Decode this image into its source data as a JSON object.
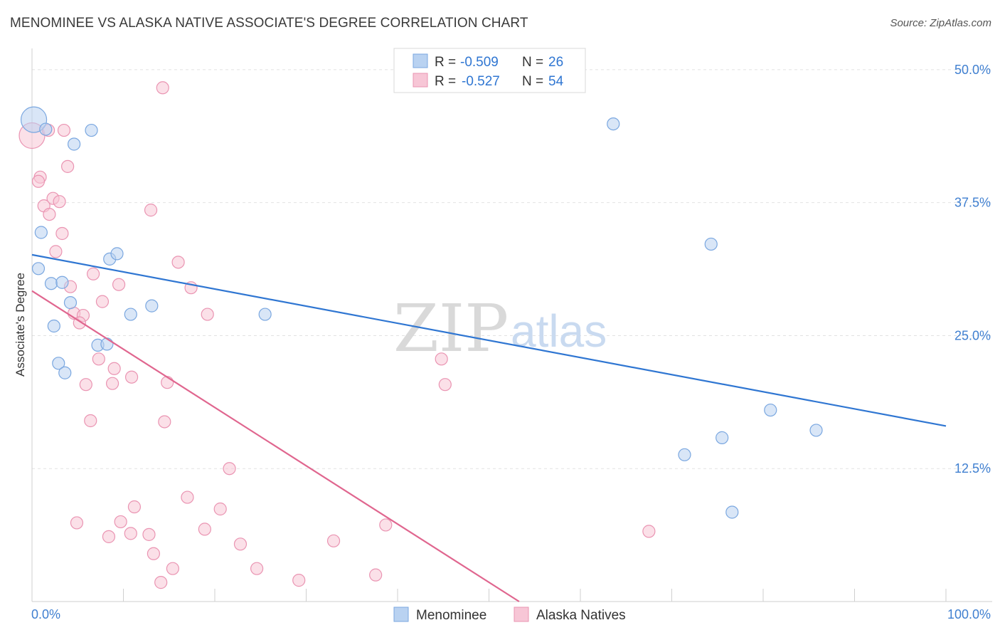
{
  "header": {
    "title": "MENOMINEE VS ALASKA NATIVE ASSOCIATE'S DEGREE CORRELATION CHART",
    "source": "Source: ZipAtlas.com"
  },
  "watermark": {
    "zip": "ZIP",
    "atlas": "atlas"
  },
  "stats_legend": [
    {
      "r_label": "R =",
      "r_value": "-0.509",
      "n_label": "N =",
      "n_value": "26"
    },
    {
      "r_label": "R =",
      "r_value": "-0.527",
      "n_label": "N =",
      "n_value": "54"
    }
  ],
  "colors": {
    "menominee_fill": "#b9d2f1",
    "menominee_stroke": "#7aa7e0",
    "menominee_line": "#2f76d2",
    "alaska_fill": "#f7c6d6",
    "alaska_stroke": "#ea94b2",
    "alaska_line": "#e0668f",
    "tick_color": "#3f7fd0",
    "value_color": "#2f76d2",
    "grid": "#e2e2e2"
  },
  "chart_data": {
    "type": "scatter",
    "title": "MENOMINEE VS ALASKA NATIVE ASSOCIATE'S DEGREE CORRELATION CHART",
    "xlabel": "",
    "ylabel": "Associate's Degree",
    "xlim": [
      0,
      100
    ],
    "ylim": [
      0,
      52
    ],
    "x_tick_labels": [
      "0.0%",
      "100.0%"
    ],
    "y_ticks": [
      12.5,
      25.0,
      37.5,
      50.0
    ],
    "y_tick_labels": [
      "12.5%",
      "25.0%",
      "37.5%",
      "50.0%"
    ],
    "grid": true,
    "legend_position": "bottom-center",
    "series": [
      {
        "name": "Menominee",
        "color": "#7aa7e0",
        "trend": {
          "x": [
            0,
            100
          ],
          "y": [
            32.6,
            16.5
          ]
        },
        "points": [
          {
            "x": 0.2,
            "y": 45.3,
            "big": true
          },
          {
            "x": 1.5,
            "y": 44.4
          },
          {
            "x": 4.6,
            "y": 43.0
          },
          {
            "x": 6.5,
            "y": 44.3
          },
          {
            "x": 1.0,
            "y": 34.7
          },
          {
            "x": 0.7,
            "y": 31.3
          },
          {
            "x": 2.1,
            "y": 29.9
          },
          {
            "x": 3.3,
            "y": 30.0
          },
          {
            "x": 4.2,
            "y": 28.1
          },
          {
            "x": 8.5,
            "y": 32.2
          },
          {
            "x": 9.3,
            "y": 32.7
          },
          {
            "x": 2.4,
            "y": 25.9
          },
          {
            "x": 10.8,
            "y": 27.0
          },
          {
            "x": 13.1,
            "y": 27.8
          },
          {
            "x": 25.5,
            "y": 27.0
          },
          {
            "x": 7.2,
            "y": 24.1
          },
          {
            "x": 8.2,
            "y": 24.2
          },
          {
            "x": 2.9,
            "y": 22.4
          },
          {
            "x": 3.6,
            "y": 21.5
          },
          {
            "x": 63.6,
            "y": 44.9
          },
          {
            "x": 74.3,
            "y": 33.6
          },
          {
            "x": 80.8,
            "y": 18.0
          },
          {
            "x": 85.8,
            "y": 16.1
          },
          {
            "x": 75.5,
            "y": 15.4
          },
          {
            "x": 71.4,
            "y": 13.8
          },
          {
            "x": 76.6,
            "y": 8.4
          }
        ]
      },
      {
        "name": "Alaska Natives",
        "color": "#ea94b2",
        "trend": {
          "x": [
            0,
            53.3
          ],
          "y": [
            29.2,
            0.0
          ]
        },
        "points": [
          {
            "x": 0.0,
            "y": 43.8,
            "big": true
          },
          {
            "x": 14.3,
            "y": 48.3
          },
          {
            "x": 1.8,
            "y": 44.3
          },
          {
            "x": 3.5,
            "y": 44.3
          },
          {
            "x": 3.9,
            "y": 40.9
          },
          {
            "x": 0.9,
            "y": 39.9
          },
          {
            "x": 0.7,
            "y": 39.5
          },
          {
            "x": 2.3,
            "y": 37.9
          },
          {
            "x": 3.0,
            "y": 37.6
          },
          {
            "x": 1.3,
            "y": 37.2
          },
          {
            "x": 1.9,
            "y": 36.4
          },
          {
            "x": 13.0,
            "y": 36.8
          },
          {
            "x": 3.3,
            "y": 34.6
          },
          {
            "x": 2.6,
            "y": 32.9
          },
          {
            "x": 16.0,
            "y": 31.9
          },
          {
            "x": 6.7,
            "y": 30.8
          },
          {
            "x": 4.2,
            "y": 29.6
          },
          {
            "x": 9.5,
            "y": 29.8
          },
          {
            "x": 17.4,
            "y": 29.5
          },
          {
            "x": 7.7,
            "y": 28.2
          },
          {
            "x": 4.6,
            "y": 27.1
          },
          {
            "x": 5.6,
            "y": 26.9
          },
          {
            "x": 5.2,
            "y": 26.2
          },
          {
            "x": 19.2,
            "y": 27.0
          },
          {
            "x": 7.3,
            "y": 22.8
          },
          {
            "x": 9.0,
            "y": 21.9
          },
          {
            "x": 10.9,
            "y": 21.1
          },
          {
            "x": 5.9,
            "y": 20.4
          },
          {
            "x": 8.8,
            "y": 20.5
          },
          {
            "x": 14.8,
            "y": 20.6
          },
          {
            "x": 44.8,
            "y": 22.8
          },
          {
            "x": 45.2,
            "y": 20.4
          },
          {
            "x": 6.4,
            "y": 17.0
          },
          {
            "x": 14.5,
            "y": 16.9
          },
          {
            "x": 21.6,
            "y": 12.5
          },
          {
            "x": 17.0,
            "y": 9.8
          },
          {
            "x": 11.2,
            "y": 8.9
          },
          {
            "x": 20.6,
            "y": 8.7
          },
          {
            "x": 4.9,
            "y": 7.4
          },
          {
            "x": 9.7,
            "y": 7.5
          },
          {
            "x": 18.9,
            "y": 6.8
          },
          {
            "x": 8.4,
            "y": 6.1
          },
          {
            "x": 10.8,
            "y": 6.4
          },
          {
            "x": 12.8,
            "y": 6.3
          },
          {
            "x": 22.8,
            "y": 5.4
          },
          {
            "x": 33.0,
            "y": 5.7
          },
          {
            "x": 38.7,
            "y": 7.2
          },
          {
            "x": 67.5,
            "y": 6.6
          },
          {
            "x": 13.3,
            "y": 4.5
          },
          {
            "x": 15.4,
            "y": 3.1
          },
          {
            "x": 24.6,
            "y": 3.1
          },
          {
            "x": 14.1,
            "y": 1.8
          },
          {
            "x": 29.2,
            "y": 2.0
          },
          {
            "x": 37.6,
            "y": 2.5
          }
        ]
      }
    ]
  }
}
